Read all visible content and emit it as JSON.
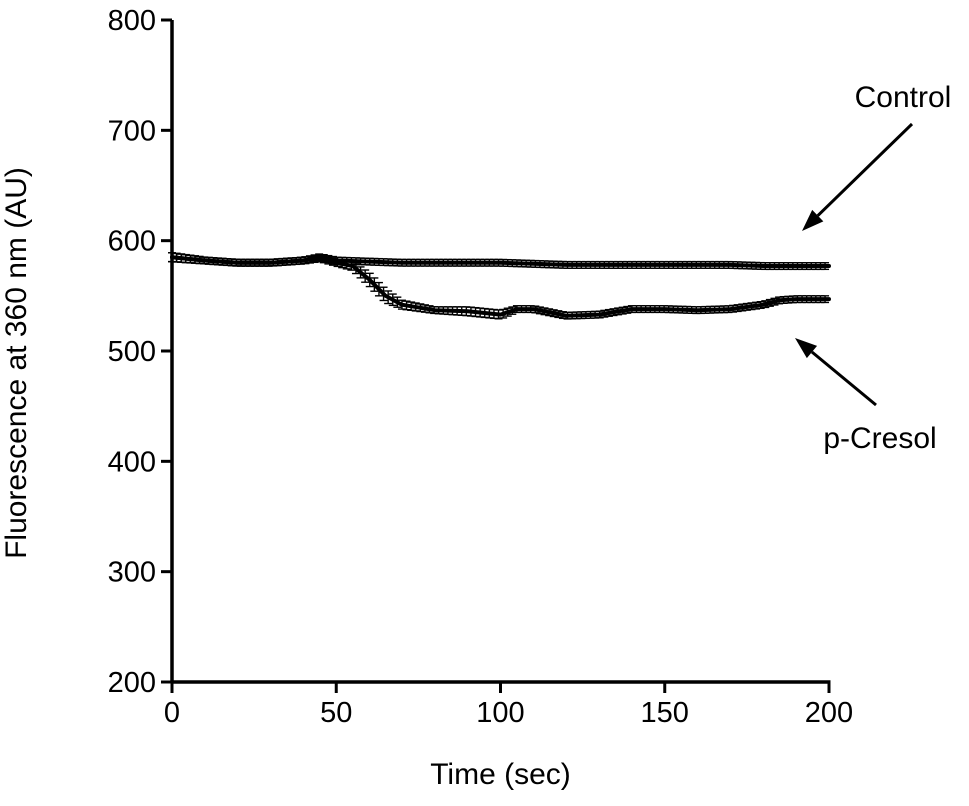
{
  "chart_data": {
    "type": "line",
    "title": "",
    "xlabel": "Time (sec)",
    "ylabel": "Fluorescence at 360 nm (AU)",
    "xlim": [
      0,
      200
    ],
    "ylim": [
      200,
      800
    ],
    "xticks": [
      0,
      50,
      100,
      150,
      200
    ],
    "yticks": [
      200,
      300,
      400,
      500,
      600,
      700,
      800
    ],
    "grid": false,
    "series": [
      {
        "name": "Control",
        "x": [
          0,
          10,
          20,
          30,
          40,
          45,
          50,
          60,
          70,
          80,
          90,
          100,
          110,
          120,
          130,
          140,
          150,
          160,
          170,
          180,
          190,
          200
        ],
        "values": [
          585,
          582,
          580,
          580,
          582,
          585,
          582,
          581,
          580,
          580,
          580,
          580,
          579,
          578,
          578,
          578,
          578,
          578,
          578,
          577,
          577,
          577
        ],
        "errors": [
          4,
          3,
          3,
          3,
          3,
          3,
          3,
          3,
          3,
          3,
          3,
          3,
          3,
          3,
          3,
          3,
          3,
          3,
          3,
          3,
          3,
          3
        ]
      },
      {
        "name": "p-Cresol",
        "x": [
          0,
          10,
          20,
          30,
          40,
          45,
          50,
          55,
          60,
          65,
          70,
          80,
          90,
          100,
          105,
          110,
          115,
          120,
          130,
          140,
          150,
          160,
          170,
          180,
          185,
          190,
          200
        ],
        "values": [
          585,
          582,
          580,
          580,
          582,
          584,
          580,
          577,
          565,
          550,
          542,
          537,
          536,
          533,
          538,
          538,
          535,
          532,
          533,
          538,
          538,
          537,
          538,
          542,
          546,
          547,
          547
        ],
        "errors": [
          4,
          3,
          3,
          3,
          3,
          3,
          3,
          4,
          6,
          6,
          4,
          3,
          4,
          4,
          3,
          3,
          3,
          3,
          3,
          3,
          3,
          3,
          3,
          3,
          3,
          3,
          3
        ]
      }
    ],
    "annotations": [
      {
        "text": "Control",
        "target_series": "Control"
      },
      {
        "text": "p-Cresol",
        "target_series": "p-Cresol"
      }
    ]
  }
}
